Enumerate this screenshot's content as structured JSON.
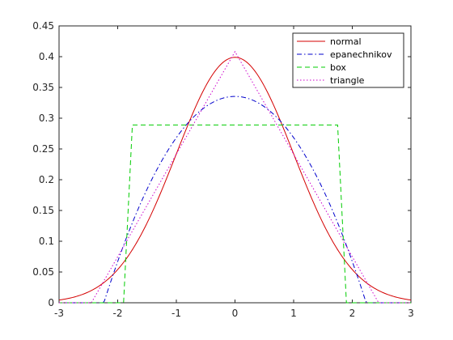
{
  "chart_data": {
    "type": "line",
    "title": "",
    "xlabel": "",
    "ylabel": "",
    "xlim": [
      -3,
      3
    ],
    "ylim": [
      0,
      0.45
    ],
    "xticks": [
      "-3",
      "-2",
      "-1",
      "0",
      "1",
      "2",
      "3"
    ],
    "yticks": [
      "0",
      "0.05",
      "0.1",
      "0.15",
      "0.2",
      "0.25",
      "0.3",
      "0.35",
      "0.4",
      "0.45"
    ],
    "grid": false,
    "legend_position": "top-right",
    "series": [
      {
        "name": "normal",
        "color": "#d40000",
        "dash": "solid",
        "kernel": "normal",
        "x": [
          -3,
          -2.75,
          -2.5,
          -2.25,
          -2,
          -1.75,
          -1.5,
          -1.25,
          -1,
          -0.75,
          -0.5,
          -0.25,
          0,
          0.25,
          0.5,
          0.75,
          1,
          1.25,
          1.5,
          1.75,
          2,
          2.25,
          2.5,
          2.75,
          3
        ],
        "y": [
          0.0044,
          0.0091,
          0.0175,
          0.0317,
          0.054,
          0.0863,
          0.1295,
          0.1826,
          0.242,
          0.3011,
          0.3521,
          0.3867,
          0.3989,
          0.3867,
          0.3521,
          0.3011,
          0.242,
          0.1826,
          0.1295,
          0.0863,
          0.054,
          0.0317,
          0.0175,
          0.0091,
          0.0044
        ]
      },
      {
        "name": "epanechnikov",
        "color": "#0000cc",
        "dash": "dashdot",
        "kernel": "epanechnikov",
        "x": [
          -3,
          -2.236,
          -2,
          -1.75,
          -1.5,
          -1.25,
          -1,
          -0.75,
          -0.5,
          -0.25,
          0,
          0.25,
          0.5,
          0.75,
          1,
          1.25,
          1.5,
          1.75,
          2,
          2.236,
          3
        ],
        "y": [
          0,
          0,
          0.0671,
          0.1305,
          0.1845,
          0.2306,
          0.2683,
          0.2977,
          0.3187,
          0.3313,
          0.3354,
          0.3313,
          0.3187,
          0.2977,
          0.2683,
          0.2306,
          0.1845,
          0.1305,
          0.0671,
          0,
          0
        ]
      },
      {
        "name": "box",
        "color": "#00cc00",
        "dash": "dashed",
        "kernel": "box",
        "x": [
          -3,
          -1.9,
          -1.75,
          1.75,
          1.9,
          3
        ],
        "y": [
          0,
          0,
          0.289,
          0.289,
          0,
          0
        ]
      },
      {
        "name": "triangle",
        "color": "#cc00cc",
        "dash": "dotted",
        "kernel": "triangle",
        "x": [
          -3,
          -2.449,
          0,
          2.449,
          3
        ],
        "y": [
          0,
          0,
          0.4082,
          0,
          0
        ]
      }
    ]
  }
}
